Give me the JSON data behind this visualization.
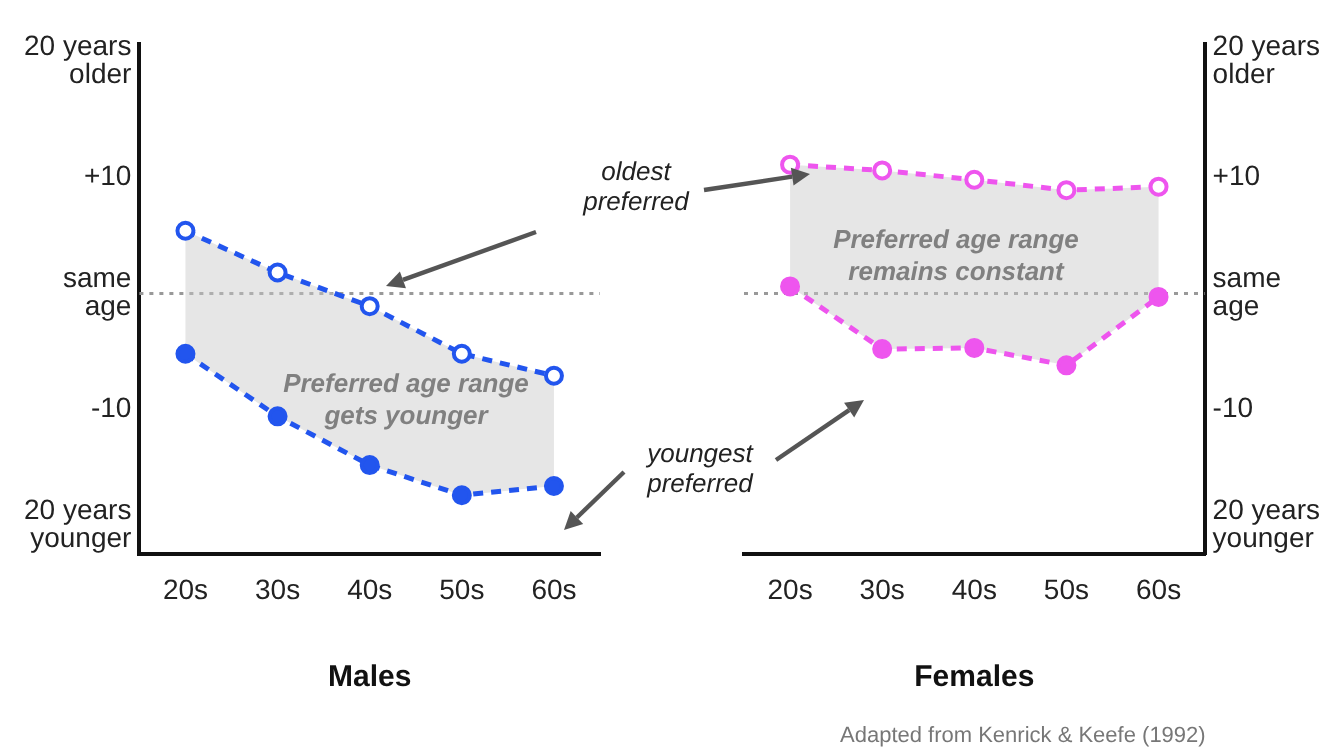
{
  "chart_data": [
    {
      "type": "line",
      "xlabel": "Males",
      "categories": [
        "20s",
        "30s",
        "40s",
        "50s",
        "60s"
      ],
      "ylim": [
        -22.5,
        21.5
      ],
      "yticks": [
        {
          "value": 20,
          "label": "20 years older"
        },
        {
          "value": 10,
          "label": "+10"
        },
        {
          "value": 0,
          "label": "same age"
        },
        {
          "value": -10,
          "label": "-10"
        },
        {
          "value": -20,
          "label": "20 years younger"
        }
      ],
      "marker": "circle",
      "line_style": "dashed",
      "grid": false,
      "legend": false,
      "ref_lines": [
        {
          "axis": "y",
          "value": 0,
          "label": null,
          "color": "#999999",
          "line_style": "dotted"
        }
      ],
      "annotations": [
        "Preferred age range gets younger",
        "oldest preferred",
        "youngest preferred"
      ],
      "series": [
        {
          "color": "#2255ee",
          "values": [
            5.4,
            1.8,
            -1.1,
            -5.2,
            -7.1
          ],
          "upper": [
            5.4,
            1.8,
            -1.1,
            -5.2,
            -7.1
          ],
          "lower": [
            -5.2,
            -10.6,
            -14.8,
            -17.4,
            -16.6
          ]
        },
        {
          "color": "#2255ee",
          "values": [
            -5.2,
            -10.6,
            -14.8,
            -17.4,
            -16.6
          ]
        }
      ]
    },
    {
      "type": "line",
      "xlabel": "Females",
      "categories": [
        "20s",
        "30s",
        "40s",
        "50s",
        "60s"
      ],
      "ylim": [
        -22.5,
        21.5
      ],
      "yticks": [
        {
          "value": 20,
          "label": "20 years older"
        },
        {
          "value": 10,
          "label": "+10"
        },
        {
          "value": 0,
          "label": "same age"
        },
        {
          "value": -10,
          "label": "-10"
        },
        {
          "value": -20,
          "label": "20 years younger"
        }
      ],
      "marker": "circle",
      "line_style": "dashed",
      "grid": false,
      "legend": false,
      "ref_lines": [
        {
          "axis": "y",
          "value": 0,
          "label": null,
          "color": "#999999",
          "line_style": "dotted"
        }
      ],
      "annotations": [
        "Preferred age range remains constant",
        "Adapted from Kenrick & Keefe (1992)"
      ],
      "series": [
        {
          "color": "#ee55ee",
          "values": [
            11.1,
            10.6,
            9.8,
            8.9,
            9.2
          ],
          "upper": [
            11.1,
            10.6,
            9.8,
            8.9,
            9.2
          ],
          "lower": [
            0.6,
            -4.8,
            -4.7,
            -6.2,
            -0.3
          ]
        },
        {
          "color": "#ee55ee",
          "values": [
            0.6,
            -4.8,
            -4.7,
            -6.2,
            -0.3
          ]
        }
      ]
    }
  ]
}
